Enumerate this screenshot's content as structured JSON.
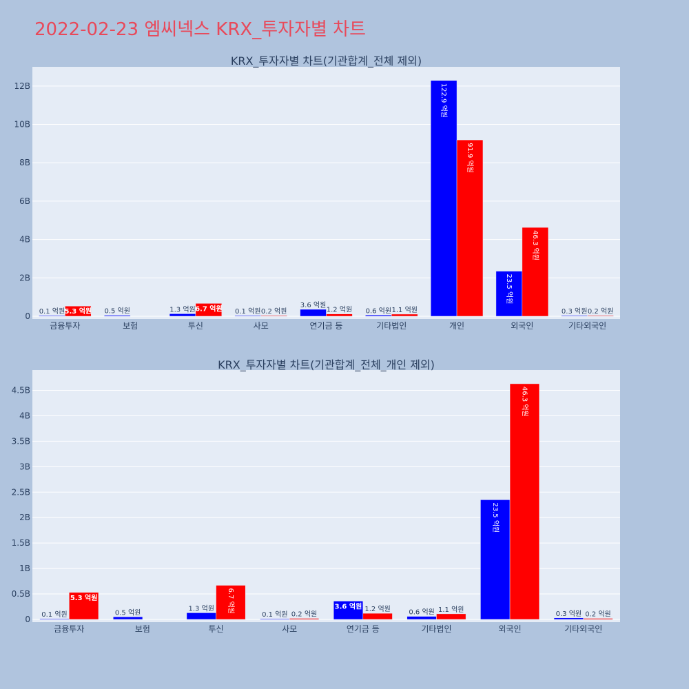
{
  "title": "2022-02-23 엠씨넥스 KRX_투자자별 차트",
  "colors": {
    "buy": "#0000ff",
    "sell": "#ff0000",
    "plot_bg": "#e5ecf6",
    "page_bg": "#b0c4de",
    "title": "#e8495a"
  },
  "chart_data": [
    {
      "type": "bar",
      "title": "KRX_투자자별 차트(기관합계_전체 제외)",
      "categories": [
        "금융투자",
        "보험",
        "투신",
        "사모",
        "연기금 등",
        "기타법인",
        "개인",
        "외국인",
        "기타외국인"
      ],
      "series": [
        {
          "values": [
            10000000,
            50000000,
            130000000,
            10000000,
            360000000,
            60000000,
            12290000000,
            2350000000,
            30000000
          ],
          "labels": [
            "0.1 억원",
            "0.5 억원",
            "1.3 억원",
            "0.1 억원",
            "3.6 억원",
            "0.6 억원",
            "122.9 억원",
            "23.5 억원",
            "0.3 억원"
          ]
        },
        {
          "values": [
            530000000,
            null,
            670000000,
            20000000,
            120000000,
            110000000,
            9190000000,
            4630000000,
            20000000
          ],
          "labels": [
            "5.3 억원",
            "",
            "6.7 억원",
            "0.2 억원",
            "1.2 억원",
            "1.1 억원",
            "91.9 억원",
            "46.3 억원",
            "0.2 억원"
          ]
        }
      ],
      "ylim": [
        0,
        13000000000
      ],
      "yticks": [
        0,
        2000000000,
        4000000000,
        6000000000,
        8000000000,
        10000000000,
        12000000000
      ],
      "yticklabels": [
        "0",
        "2B",
        "4B",
        "6B",
        "8B",
        "10B",
        "12B"
      ],
      "grid": true
    },
    {
      "type": "bar",
      "title": "KRX_투자자별 차트(기관합계_전체_개인 제외)",
      "categories": [
        "금융투자",
        "보험",
        "투신",
        "사모",
        "연기금 등",
        "기타법인",
        "외국인",
        "기타외국인"
      ],
      "series": [
        {
          "values": [
            10000000,
            50000000,
            130000000,
            10000000,
            360000000,
            60000000,
            2350000000,
            30000000
          ],
          "labels": [
            "0.1 억원",
            "0.5 억원",
            "1.3 억원",
            "0.1 억원",
            "3.6 억원",
            "0.6 억원",
            "23.5 억원",
            "0.3 억원"
          ]
        },
        {
          "values": [
            530000000,
            null,
            670000000,
            20000000,
            120000000,
            110000000,
            4630000000,
            20000000
          ],
          "labels": [
            "5.3 억원",
            "",
            "6.7 억원",
            "0.2 억원",
            "1.2 억원",
            "1.1 억원",
            "46.3 억원",
            "0.2 억원"
          ]
        }
      ],
      "ylim": [
        0,
        4900000000
      ],
      "yticks": [
        0,
        500000000,
        1000000000,
        1500000000,
        2000000000,
        2500000000,
        3000000000,
        3500000000,
        4000000000,
        4500000000
      ],
      "yticklabels": [
        "0",
        "0.5B",
        "1B",
        "1.5B",
        "2B",
        "2.5B",
        "3B",
        "3.5B",
        "4B",
        "4.5B"
      ],
      "grid": true
    }
  ]
}
